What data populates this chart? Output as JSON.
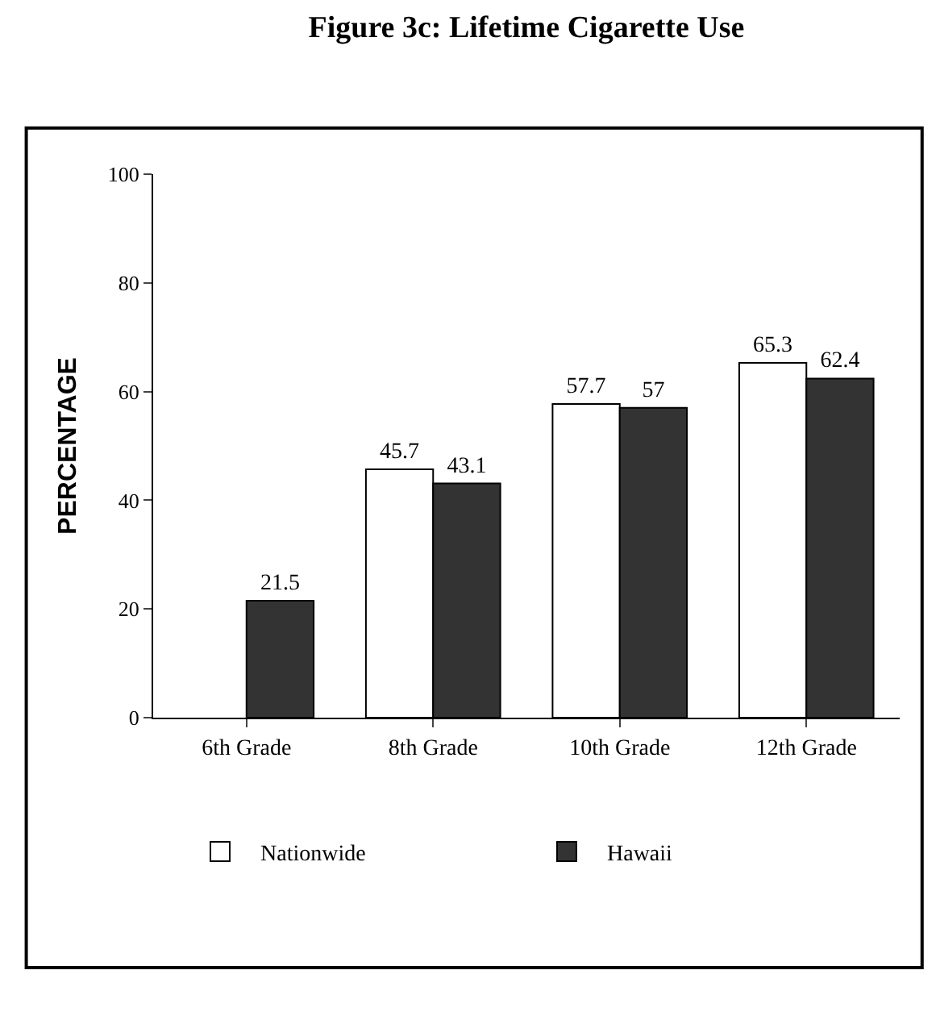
{
  "chart_data": {
    "type": "bar",
    "title": "Figure 3c: Lifetime Cigarette Use",
    "ylabel": "PERCENTAGE",
    "categories": [
      "6th Grade",
      "8th Grade",
      "10th Grade",
      "12th Grade"
    ],
    "series": [
      {
        "name": "Nationwide",
        "color": "#ffffff",
        "values": [
          null,
          45.7,
          57.7,
          65.3
        ]
      },
      {
        "name": "Hawaii",
        "color": "#333333",
        "values": [
          21.5,
          43.1,
          57,
          62.4
        ]
      }
    ],
    "ylim": [
      0,
      100
    ],
    "yticks": [
      0,
      20,
      40,
      60,
      80,
      100
    ],
    "data_labels": true,
    "legend": "bottom"
  }
}
